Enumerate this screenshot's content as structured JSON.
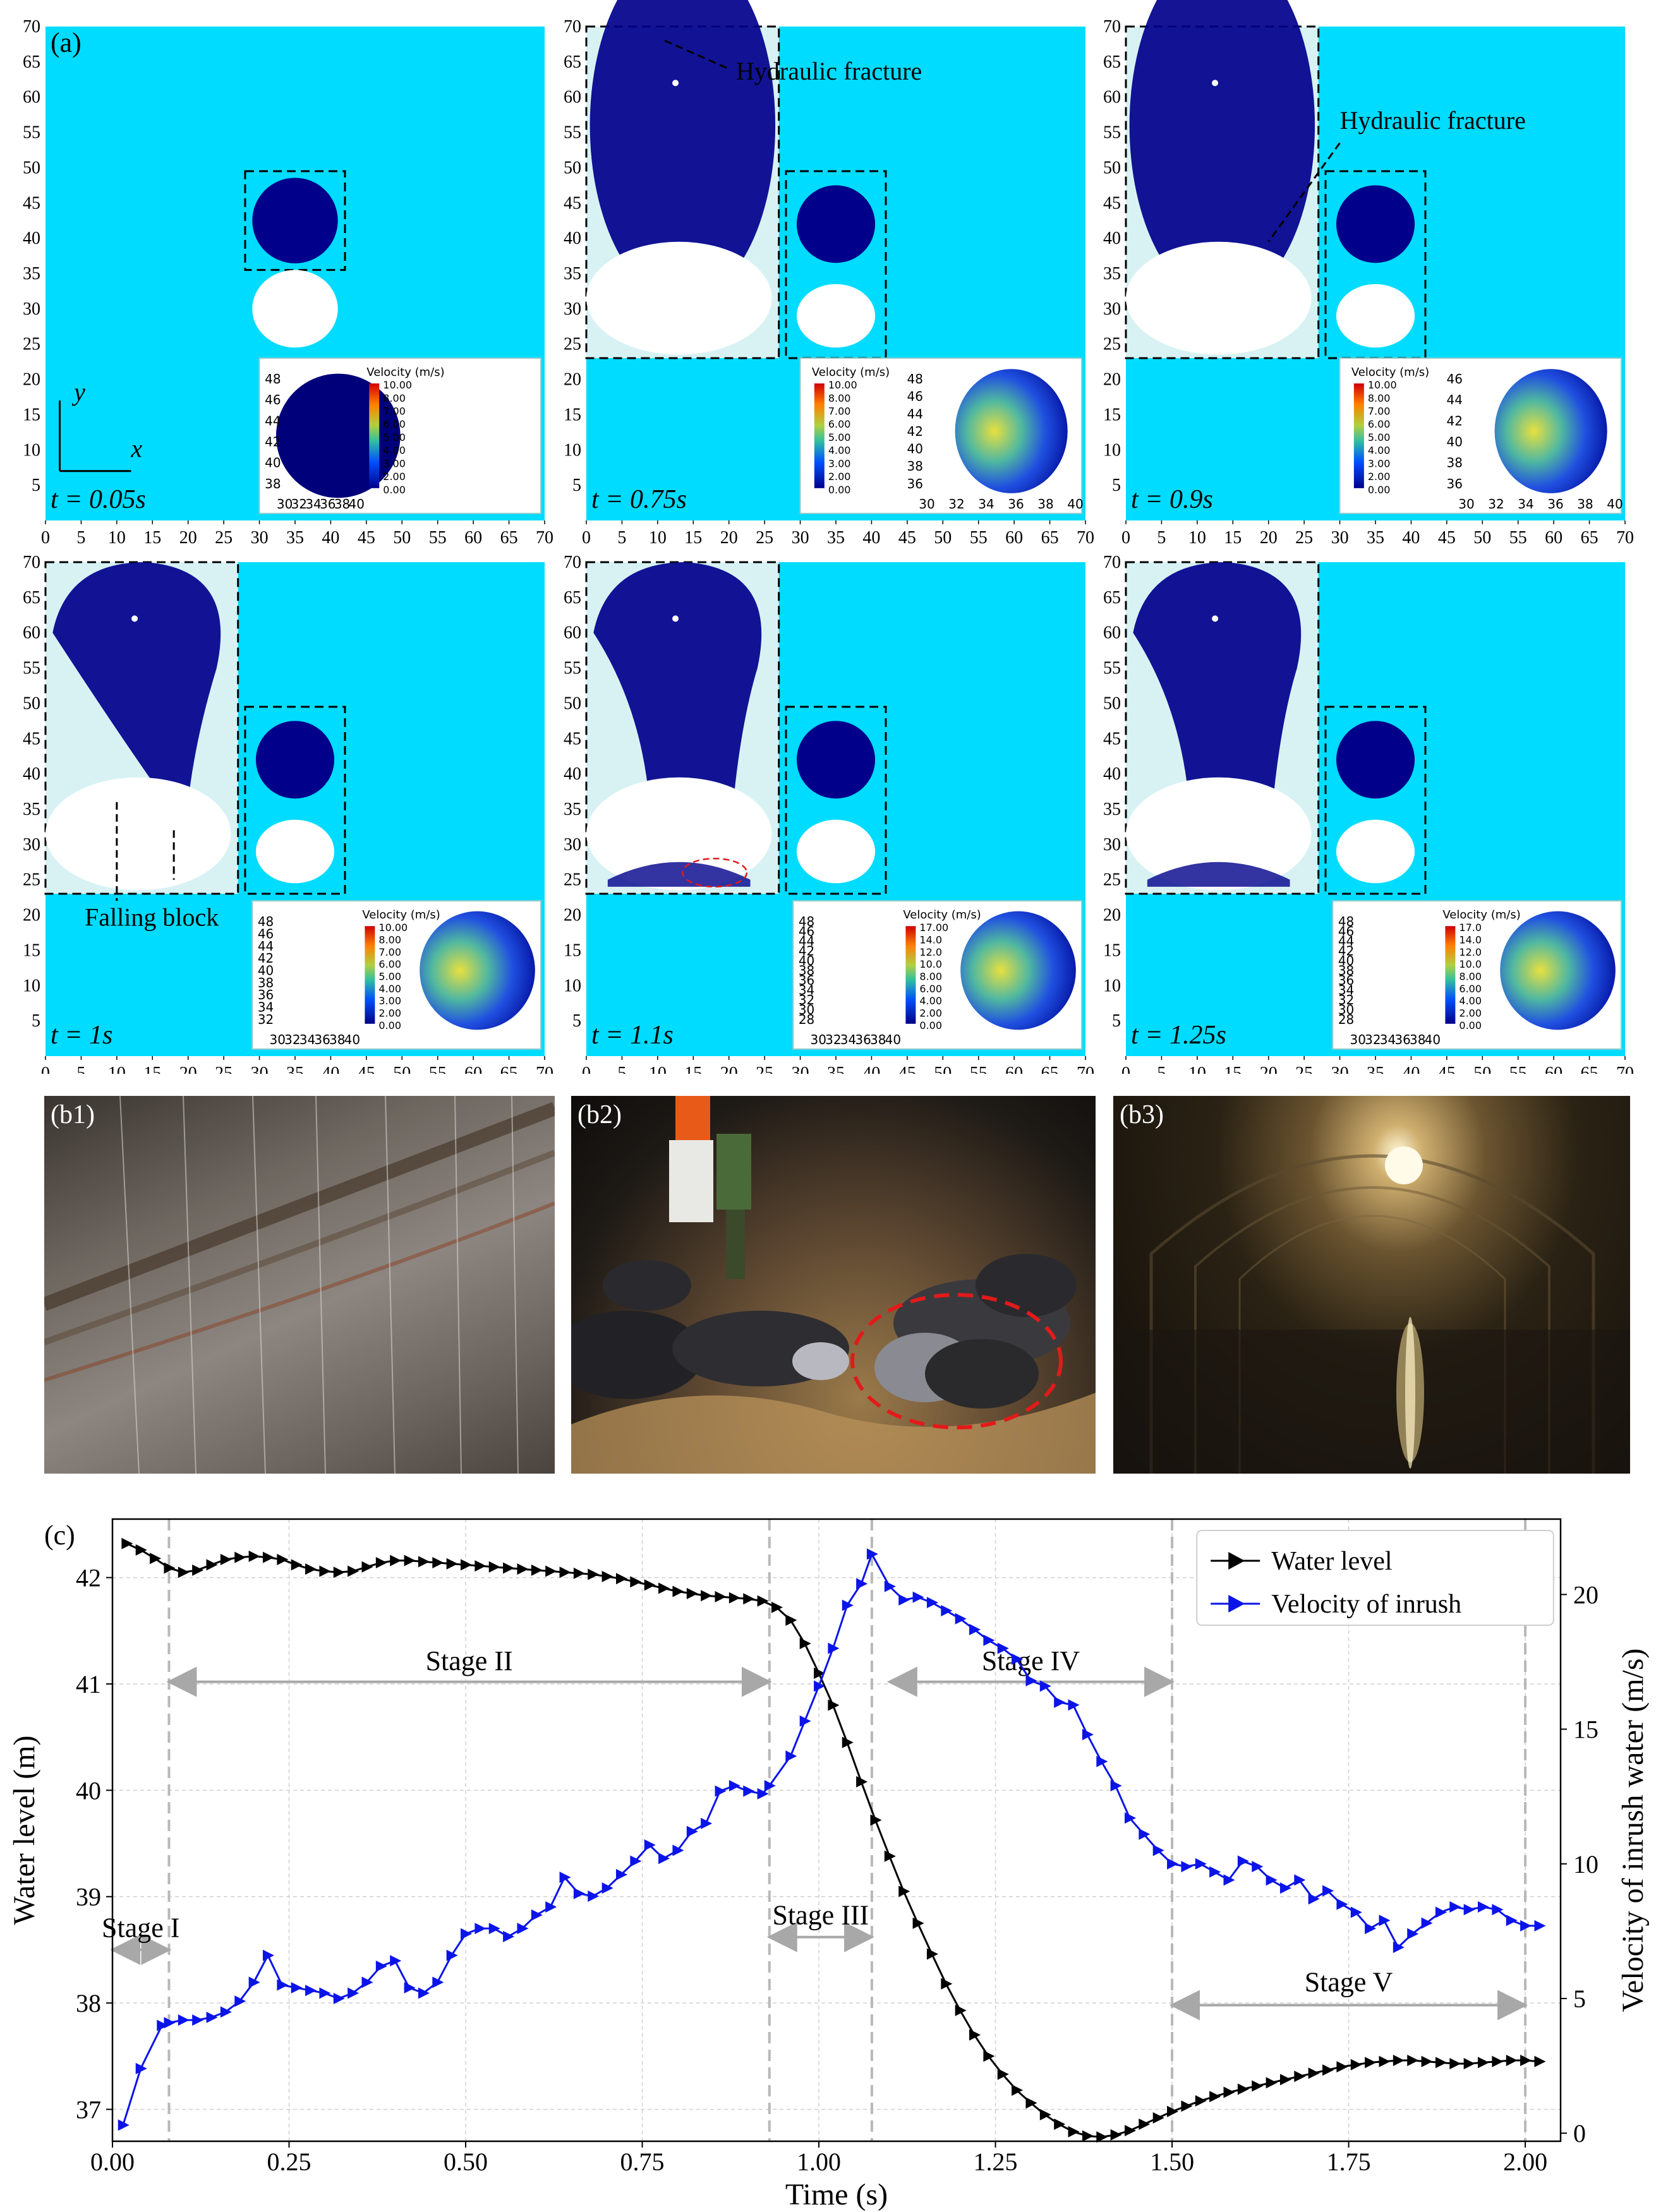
{
  "panel_a": {
    "label": "(a)",
    "axis_ticks": [
      "0",
      "5",
      "10",
      "15",
      "20",
      "25",
      "30",
      "35",
      "40",
      "45",
      "50",
      "55",
      "60",
      "65",
      "70"
    ],
    "axis_x": "x",
    "axis_y": "y",
    "hydraulic_fracture": "Hydraulic fracture",
    "falling_block": "Falling block",
    "velocity_title": "Velocity (m/s)",
    "sim_colors": {
      "background": "#00dcff",
      "particles": "#00008b",
      "cavity": "#ffffff"
    },
    "legend_scale_10": [
      "10.00",
      "8.00",
      "7.00",
      "6.00",
      "5.00",
      "4.00",
      "3.00",
      "2.00",
      "0.00"
    ],
    "legend_scale_17": [
      "17.00",
      "14.0",
      "12.0",
      "10.0",
      "8.00",
      "6.00",
      "4.00",
      "2.00",
      "0.00"
    ],
    "legend_scale_17b": [
      "17.0",
      "14.0",
      "12.0",
      "10.0",
      "8.00",
      "6.00",
      "4.00",
      "2.00",
      "0.00"
    ],
    "panels": [
      {
        "time": "t = 0.05s",
        "zoom_y": [
          "48",
          "46",
          "44",
          "42",
          "40",
          "38"
        ],
        "zoom_x": [
          "30",
          "32",
          "34",
          "36",
          "38",
          "40"
        ]
      },
      {
        "time": "t = 0.75s",
        "zoom_y": [
          "48",
          "46",
          "44",
          "42",
          "40",
          "38",
          "36"
        ],
        "zoom_x": [
          "30",
          "32",
          "34",
          "36",
          "38",
          "40"
        ]
      },
      {
        "time": "t = 0.9s",
        "zoom_y": [
          "46",
          "44",
          "42",
          "40",
          "38",
          "36"
        ],
        "zoom_x": [
          "30",
          "32",
          "34",
          "36",
          "38",
          "40"
        ]
      },
      {
        "time": "t = 1s",
        "zoom_y": [
          "48",
          "46",
          "44",
          "42",
          "40",
          "38",
          "36",
          "34",
          "32"
        ],
        "zoom_x": [
          "30",
          "32",
          "34",
          "36",
          "38",
          "40"
        ]
      },
      {
        "time": "t = 1.1s",
        "zoom_y": [
          "48",
          "46",
          "44",
          "42",
          "40",
          "38",
          "36",
          "34",
          "32",
          "30",
          "28"
        ],
        "zoom_x": [
          "30",
          "32",
          "34",
          "36",
          "38",
          "40"
        ]
      },
      {
        "time": "t = 1.25s",
        "zoom_y": [
          "48",
          "46",
          "44",
          "42",
          "40",
          "38",
          "36",
          "34",
          "32",
          "30",
          "28"
        ],
        "zoom_x": [
          "30",
          "32",
          "34",
          "36",
          "38",
          "40"
        ]
      }
    ]
  },
  "photos": [
    {
      "label": "(b1)"
    },
    {
      "label": "(b2)"
    },
    {
      "label": "(b3)"
    }
  ],
  "chart_data": {
    "label": "(c)",
    "type": "line",
    "xlabel": "Time (s)",
    "ylabel": "Water level (m)",
    "y2label": "Velocity of inrush water (m/s)",
    "xlim": [
      0,
      2.05
    ],
    "ylim": [
      36.7,
      42.55
    ],
    "y2lim": [
      -0.3,
      22.8
    ],
    "xticks": [
      "0.00",
      "0.25",
      "0.50",
      "0.75",
      "1.00",
      "1.25",
      "1.50",
      "1.75",
      "2.00"
    ],
    "yticks": [
      "37",
      "38",
      "39",
      "40",
      "41",
      "42"
    ],
    "y2ticks": [
      "0",
      "5",
      "10",
      "15",
      "20"
    ],
    "grid": true,
    "legend_position": "top-right",
    "series": [
      {
        "name": "Water level",
        "color": "#000000",
        "axis": "left",
        "marker": "triangle-right",
        "x": [
          0.02,
          0.04,
          0.06,
          0.08,
          0.1,
          0.12,
          0.14,
          0.16,
          0.18,
          0.2,
          0.22,
          0.24,
          0.26,
          0.28,
          0.3,
          0.32,
          0.34,
          0.36,
          0.38,
          0.4,
          0.42,
          0.44,
          0.46,
          0.48,
          0.5,
          0.52,
          0.54,
          0.56,
          0.58,
          0.6,
          0.62,
          0.64,
          0.66,
          0.68,
          0.7,
          0.72,
          0.74,
          0.76,
          0.78,
          0.8,
          0.82,
          0.84,
          0.86,
          0.88,
          0.9,
          0.92,
          0.94,
          0.96,
          0.98,
          1.0,
          1.02,
          1.04,
          1.06,
          1.08,
          1.1,
          1.12,
          1.14,
          1.16,
          1.18,
          1.2,
          1.22,
          1.24,
          1.26,
          1.28,
          1.3,
          1.32,
          1.34,
          1.36,
          1.38,
          1.4,
          1.42,
          1.44,
          1.46,
          1.48,
          1.5,
          1.52,
          1.54,
          1.56,
          1.58,
          1.6,
          1.62,
          1.64,
          1.66,
          1.68,
          1.7,
          1.72,
          1.74,
          1.76,
          1.78,
          1.8,
          1.82,
          1.84,
          1.86,
          1.88,
          1.9,
          1.92,
          1.94,
          1.96,
          1.98,
          2.0,
          2.02
        ],
        "values": [
          42.32,
          42.26,
          42.18,
          42.09,
          42.05,
          42.07,
          42.12,
          42.17,
          42.19,
          42.2,
          42.19,
          42.17,
          42.12,
          42.08,
          42.06,
          42.05,
          42.06,
          42.1,
          42.14,
          42.16,
          42.16,
          42.15,
          42.14,
          42.13,
          42.12,
          42.11,
          42.1,
          42.09,
          42.08,
          42.07,
          42.06,
          42.05,
          42.04,
          42.03,
          42.01,
          41.99,
          41.96,
          41.93,
          41.9,
          41.87,
          41.85,
          41.83,
          41.82,
          41.81,
          41.8,
          41.78,
          41.72,
          41.6,
          41.38,
          41.1,
          40.8,
          40.45,
          40.08,
          39.72,
          39.38,
          39.05,
          38.75,
          38.46,
          38.18,
          37.93,
          37.7,
          37.5,
          37.33,
          37.18,
          37.06,
          36.95,
          36.86,
          36.79,
          36.75,
          36.74,
          36.76,
          36.8,
          36.86,
          36.92,
          36.98,
          37.03,
          37.08,
          37.12,
          37.16,
          37.19,
          37.22,
          37.25,
          37.28,
          37.31,
          37.34,
          37.37,
          37.4,
          37.42,
          37.44,
          37.45,
          37.46,
          37.46,
          37.45,
          37.44,
          37.43,
          37.43,
          37.44,
          37.45,
          37.46,
          37.46,
          37.45
        ]
      },
      {
        "name": "Velocity of inrush",
        "color": "#0b14e8",
        "axis": "right",
        "marker": "triangle-right",
        "x": [
          0.015,
          0.04,
          0.07,
          0.08,
          0.1,
          0.12,
          0.14,
          0.16,
          0.18,
          0.2,
          0.22,
          0.24,
          0.26,
          0.28,
          0.3,
          0.32,
          0.34,
          0.36,
          0.38,
          0.4,
          0.42,
          0.44,
          0.46,
          0.48,
          0.5,
          0.52,
          0.54,
          0.56,
          0.58,
          0.6,
          0.62,
          0.64,
          0.66,
          0.68,
          0.7,
          0.72,
          0.74,
          0.76,
          0.78,
          0.8,
          0.82,
          0.84,
          0.86,
          0.88,
          0.9,
          0.92,
          0.93,
          0.96,
          0.98,
          1.0,
          1.02,
          1.04,
          1.06,
          1.075,
          1.1,
          1.12,
          1.14,
          1.16,
          1.18,
          1.2,
          1.22,
          1.24,
          1.26,
          1.28,
          1.3,
          1.32,
          1.34,
          1.36,
          1.38,
          1.4,
          1.42,
          1.44,
          1.46,
          1.48,
          1.5,
          1.52,
          1.54,
          1.56,
          1.58,
          1.6,
          1.62,
          1.64,
          1.66,
          1.68,
          1.7,
          1.72,
          1.74,
          1.76,
          1.78,
          1.8,
          1.82,
          1.84,
          1.86,
          1.88,
          1.9,
          1.92,
          1.94,
          1.96,
          1.98,
          2.0,
          2.02
        ],
        "values": [
          0.3,
          2.4,
          4.0,
          4.1,
          4.2,
          4.2,
          4.3,
          4.5,
          4.9,
          5.6,
          6.6,
          5.5,
          5.4,
          5.3,
          5.2,
          5.0,
          5.2,
          5.6,
          6.2,
          6.4,
          5.4,
          5.2,
          5.6,
          6.6,
          7.4,
          7.6,
          7.6,
          7.3,
          7.6,
          8.1,
          8.4,
          9.5,
          8.9,
          8.8,
          9.1,
          9.6,
          10.1,
          10.7,
          10.2,
          10.5,
          11.2,
          11.5,
          12.7,
          12.9,
          12.7,
          12.6,
          12.9,
          14.0,
          15.3,
          16.6,
          18.0,
          19.6,
          20.4,
          21.5,
          20.3,
          19.8,
          19.9,
          19.7,
          19.4,
          19.1,
          18.7,
          18.3,
          18.0,
          17.6,
          16.8,
          16.6,
          16.0,
          15.9,
          14.8,
          13.8,
          12.9,
          11.7,
          11.1,
          10.5,
          10.0,
          9.9,
          10.0,
          9.7,
          9.4,
          10.1,
          9.9,
          9.4,
          9.1,
          9.4,
          8.7,
          9.0,
          8.5,
          8.2,
          7.6,
          7.9,
          6.9,
          7.4,
          7.8,
          8.2,
          8.4,
          8.3,
          8.4,
          8.3,
          7.9,
          7.7,
          7.7
        ]
      }
    ],
    "stage_lines_x": [
      0.08,
      0.93,
      1.075,
      1.5,
      2.0
    ],
    "stages": [
      {
        "label": "Stage I",
        "x_from": 0.0,
        "x_to": 0.08
      },
      {
        "label": "Stage II",
        "x_from": 0.08,
        "x_to": 0.93
      },
      {
        "label": "Stage III",
        "x_from": 0.93,
        "x_to": 1.075
      },
      {
        "label": "Stage IV",
        "x_from": 1.1,
        "x_to": 1.5
      },
      {
        "label": "Stage V",
        "x_from": 1.5,
        "x_to": 2.0
      }
    ]
  }
}
